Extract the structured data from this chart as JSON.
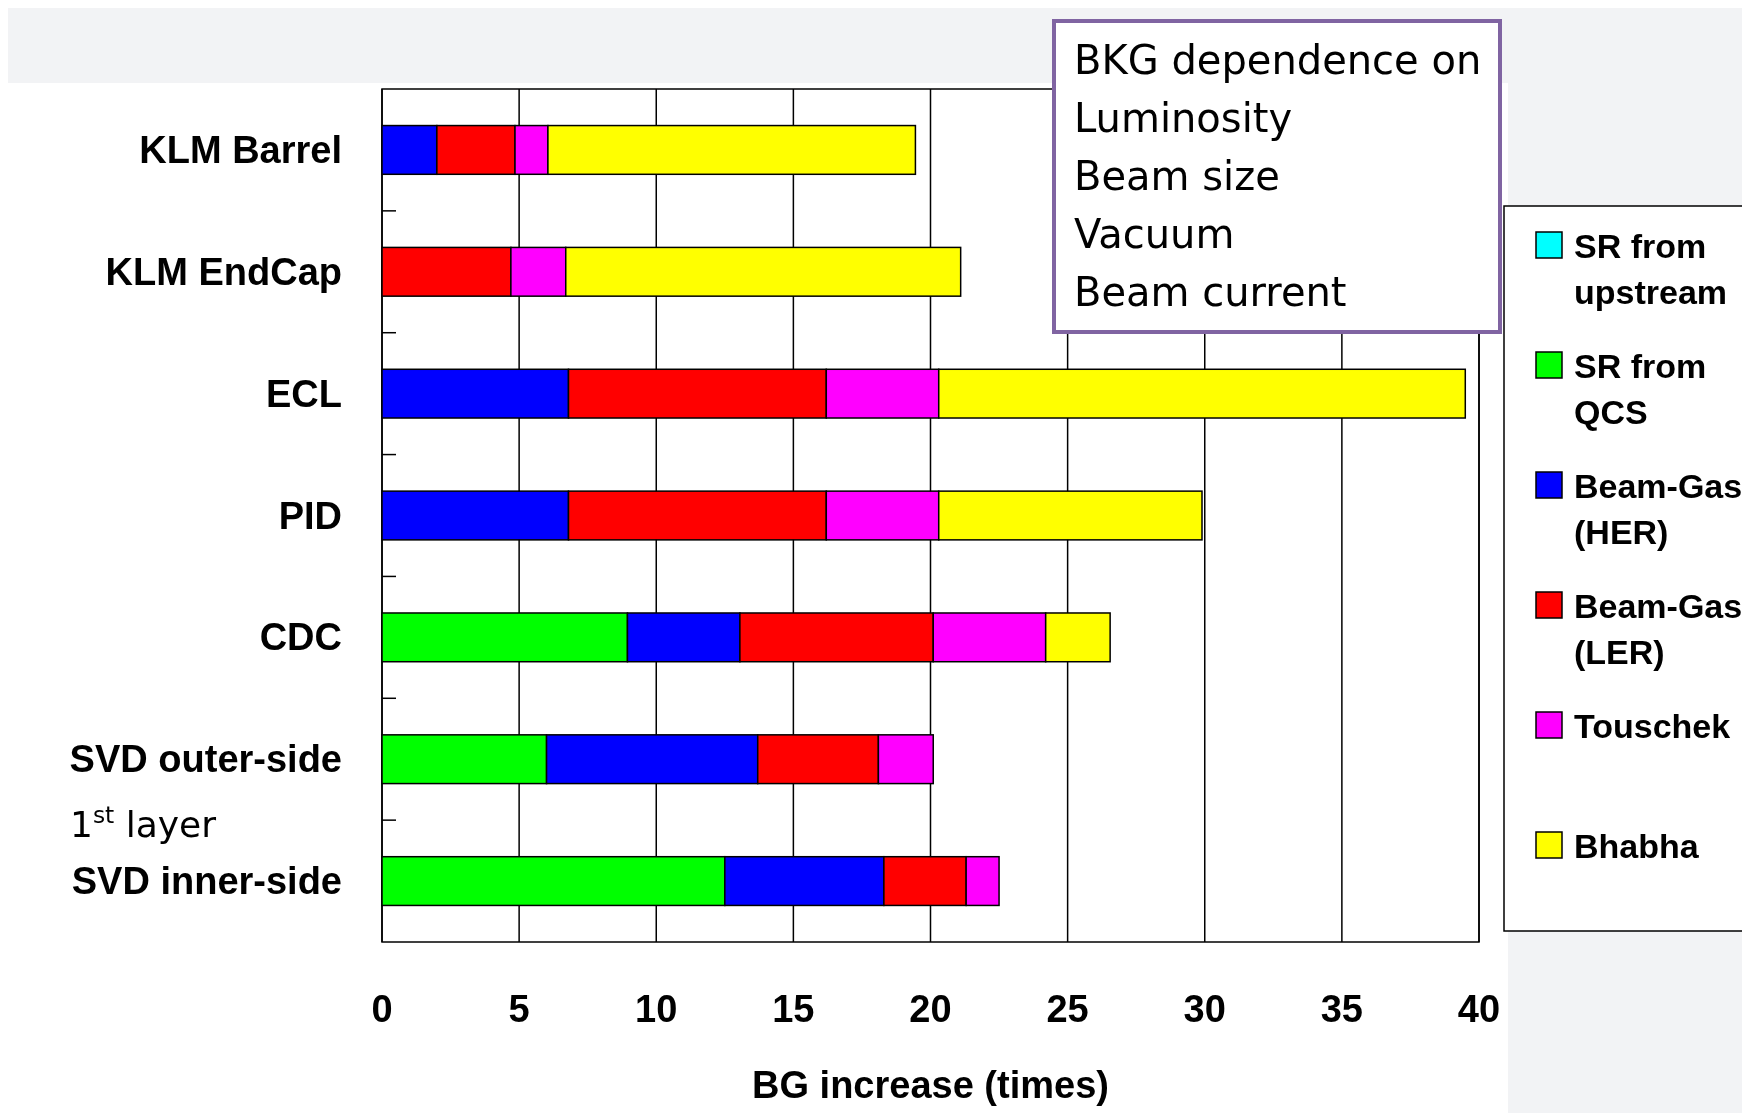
{
  "chart_data": {
    "type": "bar",
    "orientation": "horizontal",
    "stacked": true,
    "categories": [
      "KLM Barrel",
      "KLM EndCap",
      "ECL",
      "PID",
      "CDC",
      "SVD outer-side",
      "SVD inner-side"
    ],
    "series": [
      {
        "name": "SR from upstream",
        "color": "#00ffff",
        "values": [
          null,
          null,
          null,
          null,
          null,
          null,
          null
        ]
      },
      {
        "name": "SR from QCS",
        "color": "#00ff00",
        "values": [
          null,
          null,
          null,
          null,
          8.95,
          6.0,
          12.5
        ]
      },
      {
        "name": "Beam-Gas (HER)",
        "color": "#0000ff",
        "values": [
          2.0,
          null,
          6.8,
          6.8,
          4.1,
          7.7,
          5.8
        ]
      },
      {
        "name": "Beam-Gas (LER)",
        "color": "#ff0000",
        "values": [
          2.85,
          4.7,
          9.4,
          9.4,
          7.05,
          4.4,
          3.0
        ]
      },
      {
        "name": "Touschek",
        "color": "#ff00ff",
        "values": [
          1.2,
          2.0,
          4.1,
          4.1,
          4.1,
          2.0,
          1.2
        ]
      },
      {
        "name": "Bhabha",
        "color": "#ffff00",
        "values": [
          13.4,
          14.4,
          19.2,
          9.6,
          2.35,
          null,
          null
        ]
      }
    ],
    "xlim": [
      0,
      40
    ],
    "xticks": [
      0,
      5,
      10,
      15,
      20,
      25,
      30,
      35,
      40
    ],
    "xlabel": "BG increase (times)",
    "grid": "x",
    "legend": "right",
    "annotations": [
      "1$^{st}$ layer",
      "BKG dependence on",
      "Luminosity",
      "Beam size",
      "Vacuum",
      "Beam current"
    ]
  }
}
